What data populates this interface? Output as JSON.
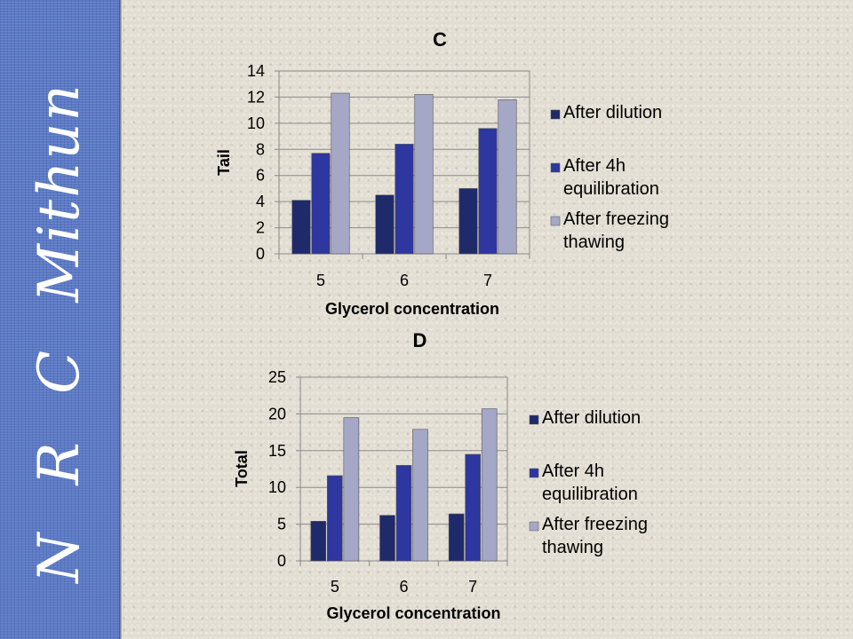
{
  "sidebar": {
    "brand_letters": [
      "N",
      "R",
      "C",
      "Mithun"
    ]
  },
  "chart_data": [
    {
      "type": "bar",
      "title": "C",
      "xlabel": "Glycerol concentration",
      "ylabel": "Tail",
      "categories": [
        "5",
        "6",
        "7"
      ],
      "ylim": [
        0,
        14
      ],
      "yticks": [
        0,
        2,
        4,
        6,
        8,
        10,
        12,
        14
      ],
      "grid": true,
      "legend_position": "right",
      "series": [
        {
          "name": "After dilution",
          "color": "#1f2a6b",
          "values": [
            4.1,
            4.5,
            5.0
          ]
        },
        {
          "name": "After 4h equilibration",
          "color": "#2e36a0",
          "values": [
            7.7,
            8.4,
            9.6
          ]
        },
        {
          "name": "After freezing thawing",
          "color": "#a4a7c6",
          "values": [
            12.3,
            12.2,
            11.8
          ]
        }
      ]
    },
    {
      "type": "bar",
      "title": "D",
      "xlabel": "Glycerol concentration",
      "ylabel": "Total",
      "categories": [
        "5",
        "6",
        "7"
      ],
      "ylim": [
        0,
        25
      ],
      "yticks": [
        0,
        5,
        10,
        15,
        20,
        25
      ],
      "grid": true,
      "legend_position": "right",
      "series": [
        {
          "name": "After dilution",
          "color": "#1f2a6b",
          "values": [
            5.4,
            6.2,
            6.4
          ]
        },
        {
          "name": "After 4h equilibration",
          "color": "#2e36a0",
          "values": [
            11.6,
            13.0,
            14.5
          ]
        },
        {
          "name": "After freezing thawing",
          "color": "#a4a7c6",
          "values": [
            19.5,
            17.9,
            20.7
          ]
        }
      ]
    }
  ]
}
